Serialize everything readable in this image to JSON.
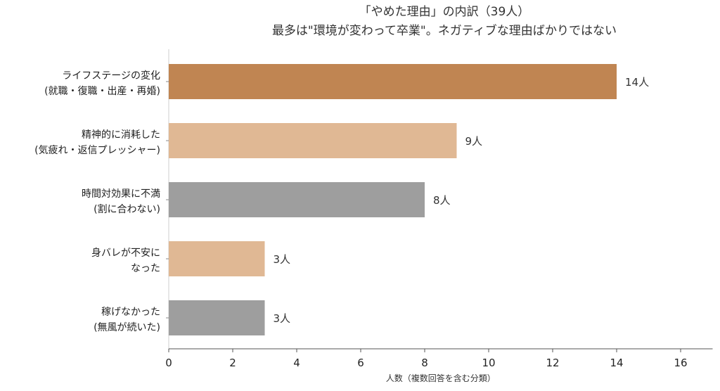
{
  "chart_data": {
    "type": "bar",
    "orientation": "horizontal",
    "title": "「やめた理由」の内訳（39人）",
    "subtitle": "最多は\"環境が変わって卒業\"。ネガティブな理由ばかりではない",
    "xlabel": "人数（複数回答を含む分類）",
    "ylabel": "",
    "xlim": [
      0,
      17
    ],
    "xticks": [
      "0",
      "2",
      "4",
      "6",
      "8",
      "10",
      "12",
      "14",
      "16"
    ],
    "grid": false,
    "categories": [
      [
        "ライフステージの変化",
        "(就職・復職・出産・再婚)"
      ],
      [
        "精神的に消耗した",
        "(気疲れ・返信プレッシャー)"
      ],
      [
        "時間対効果に不満",
        "(割に合わない)"
      ],
      [
        "身バレが不安に",
        "なった"
      ],
      [
        "稼げなかった",
        "(無風が続いた)"
      ]
    ],
    "values": [
      14,
      9,
      8,
      3,
      3
    ],
    "data_labels": [
      "14人",
      "9人",
      "8人",
      "3人",
      "3人"
    ],
    "colors": [
      "#c08552",
      "#e0b894",
      "#9e9e9e",
      "#e0b894",
      "#9e9e9e"
    ]
  }
}
